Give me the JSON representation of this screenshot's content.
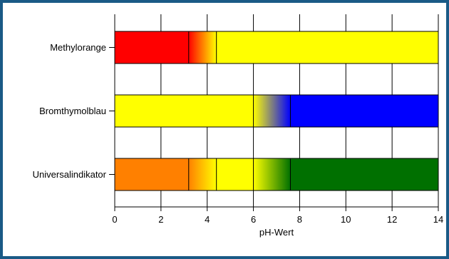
{
  "chart_data": {
    "type": "bar",
    "orientation": "horizontal",
    "title": "",
    "xlabel": "pH-Wert",
    "ylabel": "",
    "xlim": [
      0,
      14
    ],
    "xticks": [
      0,
      2,
      4,
      6,
      8,
      10,
      12,
      14
    ],
    "grid": "vertical",
    "legend": "none",
    "indicators": [
      {
        "name": "Methylorange",
        "segments": [
          {
            "from": 0,
            "to": 3.2,
            "color_from": "#ff0000",
            "color_to": "#ff0000"
          },
          {
            "from": 3.2,
            "to": 4.4,
            "color_from": "#ff0000",
            "color_to": "#ffff00"
          },
          {
            "from": 4.4,
            "to": 14,
            "color_from": "#ffff00",
            "color_to": "#ffff00"
          }
        ]
      },
      {
        "name": "Bromthymolblau",
        "segments": [
          {
            "from": 0,
            "to": 6.0,
            "color_from": "#ffff00",
            "color_to": "#ffff00"
          },
          {
            "from": 6.0,
            "to": 7.6,
            "color_from": "#ffff00",
            "color_to": "#0000ff"
          },
          {
            "from": 7.6,
            "to": 14,
            "color_from": "#0000ff",
            "color_to": "#0000ff"
          }
        ]
      },
      {
        "name": "Universalindikator",
        "segments": [
          {
            "from": 0,
            "to": 3.2,
            "color_from": "#ff8000",
            "color_to": "#ff8000"
          },
          {
            "from": 3.2,
            "to": 4.4,
            "color_from": "#ff8000",
            "color_to": "#ffff00"
          },
          {
            "from": 4.4,
            "to": 6.0,
            "color_from": "#ffff00",
            "color_to": "#ffff00"
          },
          {
            "from": 6.0,
            "to": 7.6,
            "color_from": "#ffff00",
            "color_to": "#007000"
          },
          {
            "from": 7.6,
            "to": 14,
            "color_from": "#007000",
            "color_to": "#007000"
          }
        ]
      }
    ]
  },
  "colors": {
    "frame_border": "#1a5a86",
    "grid": "#000000",
    "bar_outline": "#000000"
  }
}
